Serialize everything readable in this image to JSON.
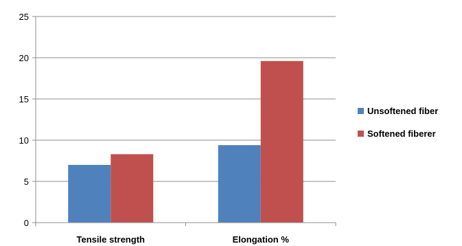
{
  "chart_data": {
    "type": "bar",
    "categories": [
      "Tensile strength",
      "Elongation %"
    ],
    "series": [
      {
        "name": "Unsoftened fiber",
        "values": [
          7.0,
          9.4
        ],
        "color": "#4F81BD"
      },
      {
        "name": "Softened fiberer",
        "values": [
          8.3,
          19.6
        ],
        "color": "#C0504D"
      }
    ],
    "title": "",
    "xlabel": "",
    "ylabel": "",
    "ylim": [
      0,
      25
    ],
    "yticks": [
      0,
      5,
      10,
      15,
      20,
      25
    ],
    "grid": true,
    "legend_position": "right"
  }
}
